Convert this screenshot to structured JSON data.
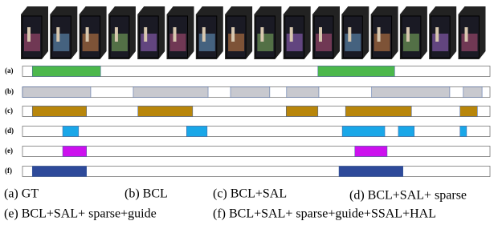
{
  "rows": [
    {
      "label": "(a)",
      "color": "#4cb84c",
      "segments": [
        [
          2.1,
          16.7
        ],
        [
          63.2,
          79.6
        ]
      ]
    },
    {
      "label": "(b)",
      "color": "#c8c9cf",
      "segments": [
        [
          0,
          14.6
        ],
        [
          23.7,
          39.7
        ],
        [
          44.5,
          52.9
        ],
        [
          56.5,
          63.4
        ],
        [
          74.7,
          91.4
        ],
        [
          94.3,
          98.3
        ]
      ]
    },
    {
      "label": "(c)",
      "color": "#b8860b",
      "segments": [
        [
          2.1,
          13.7
        ],
        [
          24.7,
          36.4
        ],
        [
          56.4,
          63.2
        ],
        [
          69.1,
          83.2
        ],
        [
          93.6,
          97.3
        ]
      ]
    },
    {
      "label": "(d)",
      "color": "#1aa7e8",
      "segments": [
        [
          8.6,
          12.0
        ],
        [
          35.1,
          39.5
        ],
        [
          68.4,
          77.5
        ],
        [
          80.4,
          83.8
        ],
        [
          93.6,
          95.0
        ]
      ]
    },
    {
      "label": "(e)",
      "color": "#cc11ee",
      "segments": [
        [
          8.6,
          13.7
        ],
        [
          71.1,
          78.0
        ]
      ]
    },
    {
      "label": "(f)",
      "color": "#2e4a9a",
      "segments": [
        [
          2.1,
          13.7
        ],
        [
          67.7,
          81.4
        ]
      ]
    }
  ],
  "captions": [
    "(a) GT",
    "(b) BCL",
    "(c) BCL+SAL",
    "(d) BCL+SAL+ sparse",
    "(e) BCL+SAL+ sparse+guide",
    "(f) BCL+SAL+ sparse+guide+SSAL+HAL"
  ]
}
